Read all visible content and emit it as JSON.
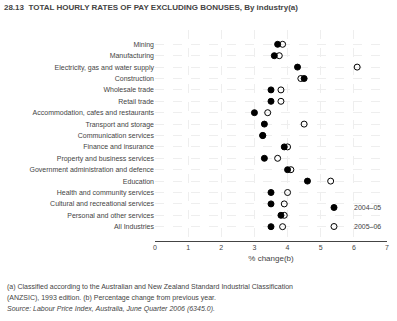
{
  "chart_data": {
    "type": "scatter",
    "orientation": "horizontal",
    "title": "28.13  TOTAL HOURLY RATES OF PAY EXCLUDING BONUSES, By industry(a)",
    "categories": [
      "Mining",
      "Manufacturing",
      "Electricity, gas and water supply",
      "Construction",
      "Wholesale trade",
      "Retail trade",
      "Accommodation, cafes and restaurants",
      "Transport and storage",
      "Communication services",
      "Finance and insurance",
      "Property and business services",
      "Government administration and defence",
      "Education",
      "Health and community services",
      "Cultural and recreational services",
      "Personal and other services",
      "All Industries"
    ],
    "series": [
      {
        "name": "2004–05",
        "color": "#000000",
        "marker": "circle",
        "values": [
          3.7,
          3.6,
          4.3,
          4.5,
          3.5,
          3.5,
          3.0,
          3.3,
          3.25,
          3.9,
          3.3,
          4.0,
          4.6,
          3.5,
          3.5,
          3.8,
          3.5
        ]
      },
      {
        "name": "2005–06",
        "color": "#000000",
        "marker": "circle-open",
        "values": [
          3.85,
          3.75,
          6.1,
          4.4,
          3.8,
          3.8,
          3.4,
          4.5,
          3.25,
          4.0,
          3.7,
          4.1,
          5.3,
          4.0,
          3.9,
          3.9,
          3.85
        ]
      }
    ],
    "xlabel": "% change(b)",
    "xlim": [
      0,
      7
    ],
    "xticks": [
      0,
      1,
      2,
      3,
      4,
      5,
      6,
      7
    ],
    "grid": true,
    "legend": "lower right",
    "annotations": [
      "(a) Classified according to the Australian and New Zealand Standard Industrial Classification",
      "(ANZSIC), 1993 edition. (b) Percentage change from previous year.",
      "Source: Labour Price Index, Australia, June Quarter 2006 (6345.0)."
    ]
  }
}
